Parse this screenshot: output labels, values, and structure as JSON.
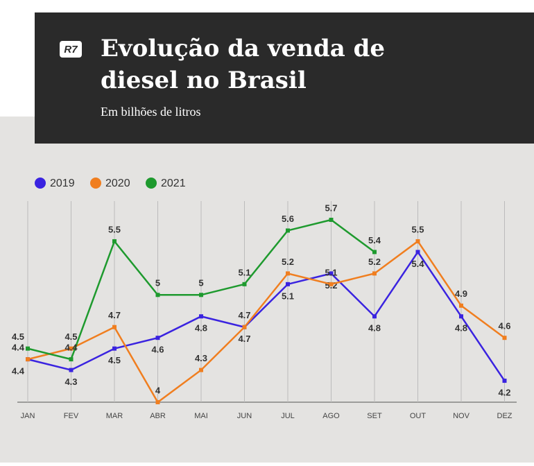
{
  "logo": "R7",
  "chart_data": {
    "type": "line",
    "title": "Evolução da venda de diesel no Brasil",
    "subtitle": "Em bilhões de litros",
    "categories": [
      "JAN",
      "FEV",
      "MAR",
      "ABR",
      "MAI",
      "JUN",
      "JUL",
      "AGO",
      "SET",
      "OUT",
      "NOV",
      "DEZ"
    ],
    "series": [
      {
        "name": "2019",
        "color": "#3a23e0",
        "values": [
          4.4,
          4.3,
          4.5,
          4.6,
          4.8,
          4.7,
          5.1,
          5.2,
          4.8,
          5.4,
          4.8,
          4.2
        ]
      },
      {
        "name": "2020",
        "color": "#f07e1f",
        "values": [
          4.4,
          4.5,
          4.7,
          4,
          4.3,
          4.7,
          5.2,
          5.1,
          5.2,
          5.5,
          4.9,
          4.6
        ]
      },
      {
        "name": "2021",
        "color": "#1e9a2e",
        "values": [
          4.5,
          4.4,
          5.5,
          5,
          5,
          5.1,
          5.6,
          5.7,
          5.4,
          null,
          null,
          null
        ]
      }
    ],
    "ylim": [
      4,
      5.7
    ],
    "legend": "top-left"
  }
}
